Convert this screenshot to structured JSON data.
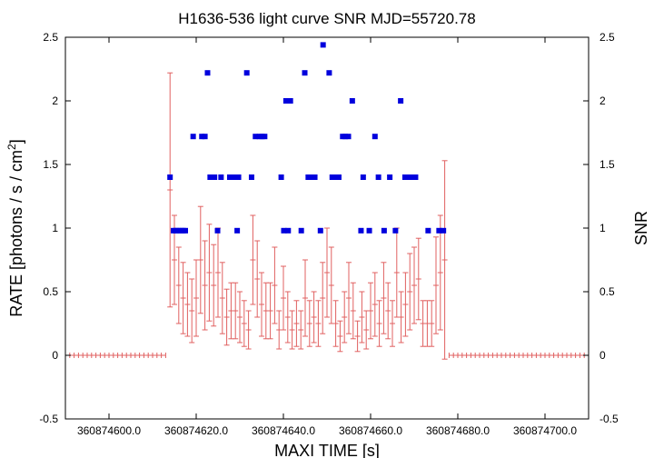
{
  "chart_data": {
    "type": "scatter",
    "title": "H1636-536 light curve  SNR MJD=55720.78",
    "xlabel": "MAXI TIME [s]",
    "ylabel_left": "RATE [photons / s / cm",
    "ylabel_left_sup": "2",
    "ylabel_left_end": "]",
    "ylabel_right": "SNR",
    "xlim": [
      360874590,
      360874710
    ],
    "ylim": [
      -0.5,
      2.5
    ],
    "x_ticks": [
      360874600,
      360874620,
      360874640,
      360874660,
      360874680,
      360874700
    ],
    "x_tick_labels": [
      "360874600.0",
      "360874620.0",
      "360874640.0",
      "360874660.0",
      "360874680.0",
      "360874700.0"
    ],
    "y_ticks": [
      -0.5,
      0,
      0.5,
      1,
      1.5,
      2,
      2.5
    ],
    "y_tick_labels": [
      "-0.5",
      "0",
      "0.5",
      "1",
      "1.5",
      "2",
      "2.5"
    ],
    "grid": false,
    "colors": {
      "rate": "#e06060",
      "snr": "#0000dd",
      "axes": "#000000"
    },
    "series": [
      {
        "key": "rate",
        "style": "error-bars",
        "x": [
          360874614,
          360874615,
          360874616,
          360874617,
          360874618,
          360874619,
          360874620,
          360874621,
          360874622,
          360874623,
          360874624,
          360874625,
          360874626,
          360874627,
          360874628,
          360874629,
          360874630,
          360874631,
          360874632,
          360874633,
          360874634,
          360874635,
          360874636,
          360874637,
          360874638,
          360874639,
          360874640,
          360874641,
          360874642,
          360874643,
          360874644,
          360874645,
          360874646,
          360874647,
          360874648,
          360874649,
          360874650,
          360874651,
          360874652,
          360874653,
          360874654,
          360874655,
          360874656,
          360874657,
          360874658,
          360874659,
          360874660,
          360874661,
          360874662,
          360874663,
          360874664,
          360874665,
          360874666,
          360874667,
          360874668,
          360874669,
          360874670,
          360874671,
          360874672,
          360874673,
          360874674,
          360874675,
          360874676,
          360874677
        ],
        "y": [
          1.3,
          0.75,
          0.55,
          0.45,
          0.4,
          0.35,
          0.45,
          0.75,
          0.55,
          0.65,
          0.55,
          0.65,
          0.45,
          0.3,
          0.35,
          0.35,
          0.3,
          0.25,
          0.2,
          0.75,
          0.6,
          0.4,
          0.35,
          0.35,
          0.55,
          0.2,
          0.45,
          0.3,
          0.2,
          0.25,
          0.2,
          0.45,
          0.25,
          0.3,
          0.25,
          0.45,
          0.65,
          0.55,
          0.25,
          0.15,
          0.3,
          0.45,
          0.35,
          0.15,
          0.3,
          0.2,
          0.35,
          0.4,
          0.25,
          0.45,
          0.35,
          0.25,
          0.65,
          0.3,
          0.4,
          0.5,
          0.55,
          0.6,
          0.25,
          0.25,
          0.25,
          0.55,
          0.65,
          0.75
        ],
        "err": [
          0.92,
          0.35,
          0.3,
          0.28,
          0.25,
          0.25,
          0.3,
          0.42,
          0.35,
          0.38,
          0.32,
          0.35,
          0.28,
          0.22,
          0.22,
          0.22,
          0.2,
          0.18,
          0.15,
          0.35,
          0.3,
          0.25,
          0.22,
          0.22,
          0.3,
          0.15,
          0.25,
          0.2,
          0.15,
          0.18,
          0.15,
          0.3,
          0.18,
          0.2,
          0.18,
          0.28,
          0.35,
          0.3,
          0.18,
          0.12,
          0.2,
          0.28,
          0.22,
          0.12,
          0.2,
          0.15,
          0.22,
          0.25,
          0.18,
          0.28,
          0.22,
          0.18,
          0.35,
          0.2,
          0.25,
          0.3,
          0.3,
          0.32,
          0.18,
          0.18,
          0.18,
          0.38,
          0.45,
          0.78
        ],
        "zero_start": 360874590,
        "zero_end": 360874710,
        "zero_gap": [
          360874613,
          360874678
        ]
      },
      {
        "key": "snr",
        "style": "squares",
        "x": [
          360874614,
          360874614.8,
          360874615.3,
          360874615.9,
          360874616.4,
          360874617,
          360874617.5,
          360874619.3,
          360874621.3,
          360874622,
          360874622.6,
          360874623.2,
          360874624.2,
          360874624.9,
          360874625.7,
          360874627.7,
          360874628.6,
          360874629.4,
          360874629.7,
          360874631.6,
          360874632.7,
          360874633.6,
          360874634.5,
          360874635.1,
          360874635.7,
          360874639.5,
          360874640.1,
          360874640.6,
          360874641.1,
          360874641.6,
          360874644.1,
          360874644.9,
          360874645.7,
          360874646.7,
          360874647.2,
          360874648.5,
          360874649.1,
          360874650.5,
          360874651.2,
          360874651.9,
          360874652.7,
          360874653.6,
          360874654.2,
          360874654.9,
          360874655.8,
          360874657.8,
          360874658.3,
          360874659.7,
          360874661,
          360874661.8,
          360874663.1,
          360874664.4,
          360874665.7,
          360874666.9,
          360874667.9,
          360874668.6,
          360874669.4,
          360874670.3,
          360874673.2,
          360874675.7,
          360874676.7
        ],
        "y": [
          1.4,
          0.98,
          0.98,
          0.98,
          0.98,
          0.98,
          0.98,
          1.72,
          1.72,
          1.72,
          2.22,
          1.4,
          1.4,
          0.98,
          1.4,
          1.4,
          1.4,
          0.98,
          1.4,
          2.22,
          1.4,
          1.72,
          1.72,
          1.72,
          1.72,
          1.4,
          0.98,
          2.0,
          0.98,
          2.0,
          0.98,
          2.22,
          1.4,
          1.4,
          1.4,
          0.98,
          2.44,
          2.22,
          1.4,
          1.4,
          1.4,
          1.72,
          1.72,
          1.72,
          2.0,
          0.98,
          1.4,
          0.98,
          1.72,
          1.4,
          0.98,
          1.4,
          0.98,
          2.0,
          1.4,
          1.4,
          1.4,
          1.4,
          0.98,
          0.98,
          0.98
        ]
      }
    ]
  }
}
